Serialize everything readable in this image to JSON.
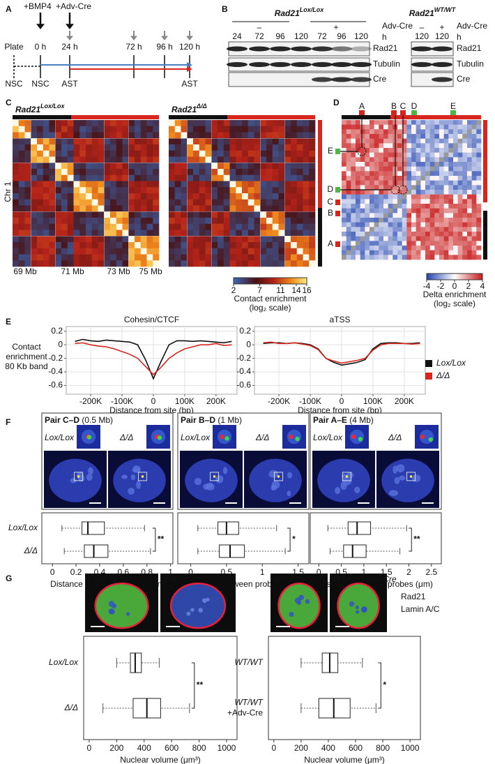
{
  "panel_letters": [
    "A",
    "B",
    "C",
    "D",
    "E",
    "F",
    "G"
  ],
  "panel_a": {
    "treatments": [
      "+BMP4",
      "+Adv-Cre"
    ],
    "plate": "Plate",
    "times": [
      "0 h",
      "24 h",
      "72 h",
      "96 h",
      "120 h"
    ],
    "cells": [
      "NSC",
      "NSC",
      "AST",
      "AST"
    ]
  },
  "panel_b": {
    "blots": [
      {
        "gene": "Rad21",
        "genotype": "Lox/Lox",
        "groups": [
          "–",
          "+"
        ],
        "lanes": [
          "24",
          "72",
          "96",
          "120",
          "72",
          "96",
          "120"
        ]
      },
      {
        "gene": "Rad21",
        "genotype": "WT/WT",
        "groups": [
          "–",
          "+"
        ],
        "lanes": [
          "120",
          "120"
        ]
      }
    ],
    "row_label": [
      "Adv-Cre",
      "h"
    ],
    "proteins": [
      "Rad21",
      "Tubulin",
      "Cre"
    ]
  },
  "panel_c": {
    "maps": [
      {
        "gene": "Rad21",
        "genotype": "Lox/Lox"
      },
      {
        "gene": "Rad21",
        "genotype": "Δ/Δ"
      }
    ],
    "ylabel": "Chr 1",
    "xlabels": [
      "69 Mb",
      "71 Mb",
      "73 Mb",
      "75 Mb"
    ],
    "colorbar": {
      "ticks": [
        2,
        7,
        11,
        14,
        16
      ],
      "label": "Contact enrichment",
      "sublabel": "(log₂ scale)"
    }
  },
  "panel_d": {
    "sites": [
      "A",
      "B",
      "C",
      "D",
      "E"
    ],
    "colorbar": {
      "ticks": [
        -4,
        -2,
        0,
        2,
        4
      ],
      "label": "Delta enrichment",
      "sublabel": "(log₂ scale)"
    }
  },
  "chart_data": [
    {
      "type": "line",
      "ylabel": [
        "Contact",
        "enrichment",
        "80 Kb band"
      ],
      "xlim": [
        -278000,
        267000
      ],
      "ylim": [
        -0.73,
        0.27
      ],
      "yticks": [
        -0.6,
        -0.4,
        -0.2,
        0,
        0.2
      ],
      "xticks": [
        {
          "value": -200000,
          "label": "-200K"
        },
        {
          "value": -100000,
          "label": "-100K"
        },
        0,
        {
          "value": 100000,
          "label": "100K"
        },
        {
          "value": 200000,
          "label": "200K"
        }
      ],
      "grid": true,
      "x": [
        -250000,
        -225000,
        -200000,
        -175000,
        -150000,
        -125000,
        -100000,
        -75000,
        -50000,
        -25000,
        0,
        25000,
        50000,
        75000,
        100000,
        125000,
        150000,
        175000,
        200000,
        225000,
        250000
      ],
      "legend": [
        {
          "name": "Lox/Lox",
          "color": "#111111"
        },
        {
          "name": "Δ/Δ",
          "color": "#d7261e"
        }
      ],
      "panels": [
        {
          "title": "Cohesin/CTCF",
          "xlabel": "Distance from site (bp)",
          "series": [
            {
              "values": [
                0.05,
                0.08,
                0.06,
                0.05,
                0.07,
                0.06,
                0.05,
                0.04,
                0.0,
                -0.22,
                -0.5,
                -0.24,
                0.0,
                0.06,
                0.06,
                0.05,
                0.06,
                0.05,
                0.04,
                0.03,
                0.05
              ]
            },
            {
              "values": [
                0.02,
                0.03,
                0.0,
                -0.02,
                -0.03,
                -0.06,
                -0.1,
                -0.14,
                -0.2,
                -0.32,
                -0.44,
                -0.33,
                -0.2,
                -0.12,
                -0.06,
                -0.03,
                0.0,
                0.0,
                0.02,
                -0.01,
                0.0
              ]
            }
          ]
        },
        {
          "title": "aTSS",
          "xlabel": "Distance from site (bp)",
          "series": [
            {
              "values": [
                0.02,
                0.03,
                0.03,
                0.02,
                0.03,
                0.02,
                0.0,
                -0.06,
                -0.2,
                -0.26,
                -0.3,
                -0.28,
                -0.26,
                -0.22,
                -0.06,
                0.02,
                0.03,
                0.03,
                0.02,
                0.02,
                0.03
              ]
            },
            {
              "values": [
                0.03,
                0.04,
                0.02,
                0.02,
                0.03,
                0.01,
                -0.01,
                -0.07,
                -0.2,
                -0.24,
                -0.27,
                -0.25,
                -0.23,
                -0.2,
                -0.08,
                0.0,
                0.02,
                0.02,
                0.02,
                0.01,
                0.02
              ]
            }
          ]
        }
      ]
    },
    {
      "type": "box",
      "categories": [
        "Lox/Lox",
        "Δ/Δ"
      ],
      "xlabel": "Distance between probes (μm)",
      "panels": [
        {
          "title": "Pair C–D",
          "subtitle": " (0.5 Mb)",
          "xlim": [
            -0.09,
            1.02
          ],
          "xticks": [
            0,
            0.2,
            0.4,
            0.6,
            0.8,
            1
          ],
          "boxes": [
            {
              "min": 0.08,
              "q1": 0.25,
              "median": 0.3,
              "q3": 0.44,
              "max": 0.78
            },
            {
              "min": 0.1,
              "q1": 0.27,
              "median": 0.35,
              "q3": 0.47,
              "max": 0.83
            }
          ],
          "significance": "**"
        },
        {
          "title": "Pair B–D",
          "subtitle": " (1 Mb)",
          "xlim": [
            -0.18,
            1.65
          ],
          "xticks": [
            0,
            0.5,
            1,
            1.5
          ],
          "boxes": [
            {
              "min": 0.1,
              "q1": 0.38,
              "median": 0.5,
              "q3": 0.67,
              "max": 1.2
            },
            {
              "min": 0.1,
              "q1": 0.4,
              "median": 0.55,
              "q3": 0.75,
              "max": 1.32
            }
          ],
          "significance": "*"
        },
        {
          "title": "Pair A–E",
          "subtitle": " (4 Mb)",
          "xlim": [
            -0.19,
            2.72
          ],
          "xticks": [
            0,
            0.5,
            1,
            1.5,
            2,
            2.5
          ],
          "boxes": [
            {
              "min": 0.2,
              "q1": 0.65,
              "median": 0.85,
              "q3": 1.15,
              "max": 1.95
            },
            {
              "min": 0.25,
              "q1": 0.55,
              "median": 0.75,
              "q3": 1.05,
              "max": 1.8
            }
          ],
          "significance": "**"
        }
      ]
    },
    {
      "type": "box",
      "xlabel": "Nuclear volume (μm³)",
      "xlim": [
        -40,
        1076
      ],
      "xticks": [
        0,
        200,
        400,
        600,
        800,
        1000
      ],
      "stain_legend": [
        {
          "name": "Rad21",
          "color": "#2ca02c"
        },
        {
          "name": "Lamin A/C",
          "color": "#e31a1c"
        }
      ],
      "panels": [
        {
          "image_labels": [
            "Lox/Lox",
            "Δ/Δ"
          ],
          "categories": [
            [
              "Lox/Lox"
            ],
            [
              "Δ/Δ"
            ]
          ],
          "boxes": [
            {
              "min": 200,
              "q1": 300,
              "median": 335,
              "q3": 380,
              "max": 510
            },
            {
              "min": 100,
              "q1": 320,
              "median": 420,
              "q3": 520,
              "max": 730
            }
          ],
          "significance": "**"
        },
        {
          "image_labels": [
            "WT/WT",
            "WT/WT+Adv-Cre"
          ],
          "categories": [
            [
              "WT/WT"
            ],
            [
              "WT/WT",
              "+Adv-Cre"
            ]
          ],
          "boxes": [
            {
              "min": 200,
              "q1": 355,
              "median": 410,
              "q3": 470,
              "max": 650
            },
            {
              "min": 200,
              "q1": 330,
              "median": 440,
              "q3": 560,
              "max": 750
            }
          ],
          "significance": "*"
        }
      ]
    }
  ]
}
